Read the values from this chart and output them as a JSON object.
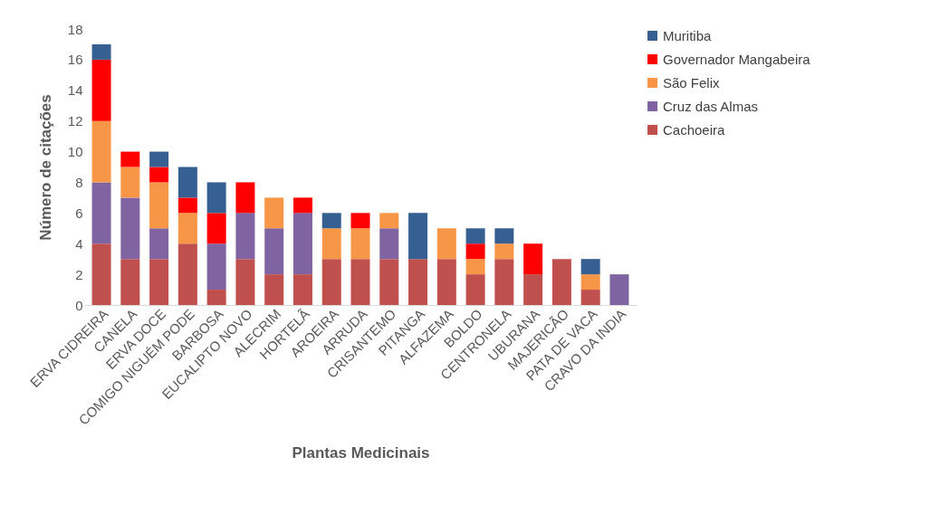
{
  "chart_data": {
    "type": "bar",
    "stacked": true,
    "xlabel": "Plantas  Medicinais",
    "ylabel": "Número de citações",
    "categories": [
      "ERVA CIDREIRA",
      "CANELA",
      "ERVA DOCE",
      "COMIGO NIGUÉM PODE",
      "BARBOSA",
      "EUCALIPTO NOVO",
      "ALECRIM",
      "HORTELÃ",
      "AROEIRA",
      "ARRUDA",
      "CRISANTEMO",
      "PITANGA",
      "ALFAZEMA",
      "BOLDO",
      "CENTRONELA",
      "UBURANA",
      "MAJERICÃO",
      "PATA DE VACA",
      "CRAVO DA INDIA"
    ],
    "series": [
      {
        "name": "Cachoeira",
        "color": "#c0504d",
        "values": [
          4,
          3,
          3,
          4,
          1,
          3,
          2,
          2,
          3,
          3,
          3,
          3,
          3,
          2,
          3,
          2,
          3,
          1,
          0
        ]
      },
      {
        "name": "Cruz das Almas",
        "color": "#8064a2",
        "values": [
          4,
          4,
          2,
          0,
          3,
          3,
          3,
          4,
          0,
          0,
          2,
          0,
          0,
          0,
          0,
          0,
          0,
          0,
          2
        ]
      },
      {
        "name": "São Felix",
        "color": "#f79646",
        "values": [
          4,
          2,
          3,
          2,
          0,
          0,
          2,
          0,
          2,
          2,
          1,
          0,
          2,
          1,
          1,
          0,
          0,
          1,
          0
        ]
      },
      {
        "name": "Governador Mangabeira",
        "color": "#ff0000",
        "values": [
          4,
          1,
          1,
          1,
          2,
          2,
          0,
          1,
          0,
          1,
          0,
          0,
          0,
          1,
          0,
          2,
          0,
          0,
          0
        ]
      },
      {
        "name": "Muritiba",
        "color": "#376092",
        "values": [
          1,
          0,
          1,
          2,
          2,
          0,
          0,
          0,
          1,
          0,
          0,
          3,
          0,
          1,
          1,
          0,
          0,
          1,
          0
        ]
      }
    ],
    "ylim": [
      0,
      18
    ],
    "yticks": [
      0,
      2,
      4,
      6,
      8,
      10,
      12,
      14,
      16,
      18
    ],
    "grid": false,
    "legend": "right"
  }
}
